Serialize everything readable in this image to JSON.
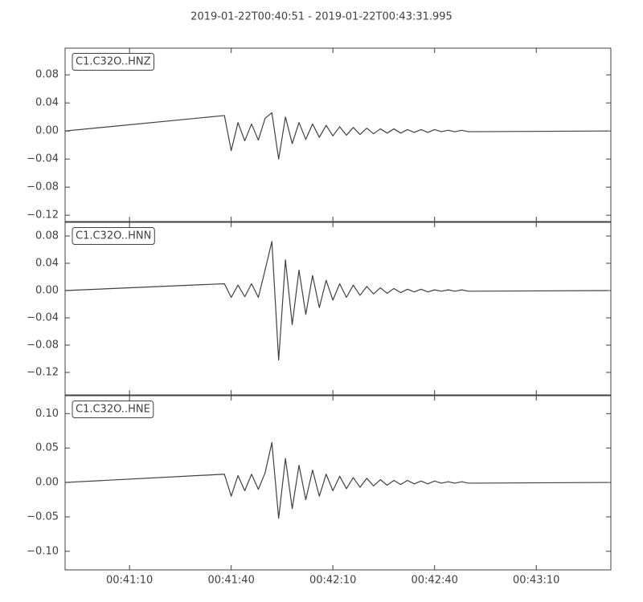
{
  "title": "2019-01-22T00:40:51  -  2019-01-22T00:43:31.995",
  "chart_data": [
    {
      "type": "line",
      "x": [
        "00:40:51",
        "00:41:38",
        "00:41:40",
        "00:41:42",
        "00:41:44",
        "00:41:46",
        "00:41:48",
        "00:41:50",
        "00:41:52",
        "00:41:54",
        "00:41:56",
        "00:41:58",
        "00:42:00",
        "00:42:02",
        "00:42:04",
        "00:42:06",
        "00:42:08",
        "00:42:10",
        "00:42:12",
        "00:42:14",
        "00:42:16",
        "00:42:18",
        "00:42:20",
        "00:42:22",
        "00:42:24",
        "00:42:26",
        "00:42:28",
        "00:42:30",
        "00:42:32",
        "00:42:34",
        "00:42:36",
        "00:42:38",
        "00:42:40",
        "00:42:42",
        "00:42:44",
        "00:42:46",
        "00:42:48",
        "00:42:50",
        "00:43:31"
      ],
      "series": [
        {
          "name": "C1.C32O..HNZ",
          "color": "#404040",
          "values": [
            0,
            0.022,
            -0.028,
            0.012,
            -0.014,
            0.01,
            -0.013,
            0.018,
            0.026,
            -0.04,
            0.02,
            -0.018,
            0.012,
            -0.012,
            0.01,
            -0.009,
            0.008,
            -0.007,
            0.006,
            -0.006,
            0.005,
            -0.005,
            0.004,
            -0.004,
            0.003,
            -0.003,
            0.003,
            -0.003,
            0.002,
            -0.002,
            0.002,
            -0.002,
            0.002,
            -0.001,
            0.001,
            -0.001,
            0.001,
            -0.001,
            0
          ]
        }
      ],
      "xlim": [
        "00:40:51",
        "00:43:31.995"
      ],
      "xticks": [
        "00:41:10",
        "00:41:40",
        "00:42:10",
        "00:42:40",
        "00:43:10"
      ],
      "ylim": [
        -0.129,
        0.118
      ],
      "yticks": [
        {
          "value": -0.12,
          "label": "−0.12"
        },
        {
          "value": -0.08,
          "label": "−0.08"
        },
        {
          "value": -0.04,
          "label": "−0.04"
        },
        {
          "value": 0,
          "label": "0.00"
        },
        {
          "value": 0.04,
          "label": "0.04"
        },
        {
          "value": 0.08,
          "label": "0.08"
        }
      ]
    },
    {
      "type": "line",
      "x": [
        "00:40:51",
        "00:41:38",
        "00:41:40",
        "00:41:42",
        "00:41:44",
        "00:41:46",
        "00:41:48",
        "00:41:50",
        "00:41:52",
        "00:41:54",
        "00:41:56",
        "00:41:58",
        "00:42:00",
        "00:42:02",
        "00:42:04",
        "00:42:06",
        "00:42:08",
        "00:42:10",
        "00:42:12",
        "00:42:14",
        "00:42:16",
        "00:42:18",
        "00:42:20",
        "00:42:22",
        "00:42:24",
        "00:42:26",
        "00:42:28",
        "00:42:30",
        "00:42:32",
        "00:42:34",
        "00:42:36",
        "00:42:38",
        "00:42:40",
        "00:42:42",
        "00:42:44",
        "00:42:46",
        "00:42:48",
        "00:42:50",
        "00:43:31"
      ],
      "series": [
        {
          "name": "C1.C32O..HNN",
          "color": "#404040",
          "values": [
            0,
            0.01,
            -0.01,
            0.008,
            -0.009,
            0.01,
            -0.01,
            0.03,
            0.072,
            -0.102,
            0.045,
            -0.05,
            0.03,
            -0.035,
            0.022,
            -0.025,
            0.015,
            -0.014,
            0.01,
            -0.01,
            0.008,
            -0.007,
            0.006,
            -0.005,
            0.004,
            -0.004,
            0.003,
            -0.003,
            0.002,
            -0.002,
            0.002,
            -0.002,
            0.001,
            -0.001,
            0.001,
            -0.001,
            0.001,
            -0.001,
            0
          ]
        }
      ],
      "xlim": [
        "00:40:51",
        "00:43:31.995"
      ],
      "xticks": [
        "00:41:10",
        "00:41:40",
        "00:42:10",
        "00:42:40",
        "00:43:10"
      ],
      "ylim": [
        -0.153,
        0.1
      ],
      "yticks": [
        {
          "value": -0.12,
          "label": "−0.12"
        },
        {
          "value": -0.08,
          "label": "−0.08"
        },
        {
          "value": -0.04,
          "label": "−0.04"
        },
        {
          "value": 0,
          "label": "0.00"
        },
        {
          "value": 0.04,
          "label": "0.04"
        },
        {
          "value": 0.08,
          "label": "0.08"
        }
      ]
    },
    {
      "type": "line",
      "x": [
        "00:40:51",
        "00:41:38",
        "00:41:40",
        "00:41:42",
        "00:41:44",
        "00:41:46",
        "00:41:48",
        "00:41:50",
        "00:41:52",
        "00:41:54",
        "00:41:56",
        "00:41:58",
        "00:42:00",
        "00:42:02",
        "00:42:04",
        "00:42:06",
        "00:42:08",
        "00:42:10",
        "00:42:12",
        "00:42:14",
        "00:42:16",
        "00:42:18",
        "00:42:20",
        "00:42:22",
        "00:42:24",
        "00:42:26",
        "00:42:28",
        "00:42:30",
        "00:42:32",
        "00:42:34",
        "00:42:36",
        "00:42:38",
        "00:42:40",
        "00:42:42",
        "00:42:44",
        "00:42:46",
        "00:42:48",
        "00:42:50",
        "00:43:31"
      ],
      "series": [
        {
          "name": "C1.C32O..HNE",
          "color": "#404040",
          "values": [
            0,
            0.012,
            -0.02,
            0.01,
            -0.012,
            0.012,
            -0.01,
            0.014,
            0.058,
            -0.052,
            0.035,
            -0.038,
            0.025,
            -0.025,
            0.018,
            -0.02,
            0.012,
            -0.012,
            0.009,
            -0.009,
            0.007,
            -0.007,
            0.006,
            -0.005,
            0.004,
            -0.004,
            0.003,
            -0.003,
            0.003,
            -0.002,
            0.002,
            -0.002,
            0.002,
            -0.001,
            0.001,
            -0.001,
            0.001,
            -0.001,
            0
          ]
        }
      ],
      "xlim": [
        "00:40:51",
        "00:43:31.995"
      ],
      "xticks": [
        "00:41:10",
        "00:41:40",
        "00:42:10",
        "00:42:40",
        "00:43:10"
      ],
      "ylim": [
        -0.127,
        0.126
      ],
      "yticks": [
        {
          "value": -0.1,
          "label": "−0.10"
        },
        {
          "value": -0.05,
          "label": "−0.05"
        },
        {
          "value": 0,
          "label": "0.00"
        },
        {
          "value": 0.05,
          "label": "0.05"
        },
        {
          "value": 0.1,
          "label": "0.10"
        }
      ]
    }
  ]
}
